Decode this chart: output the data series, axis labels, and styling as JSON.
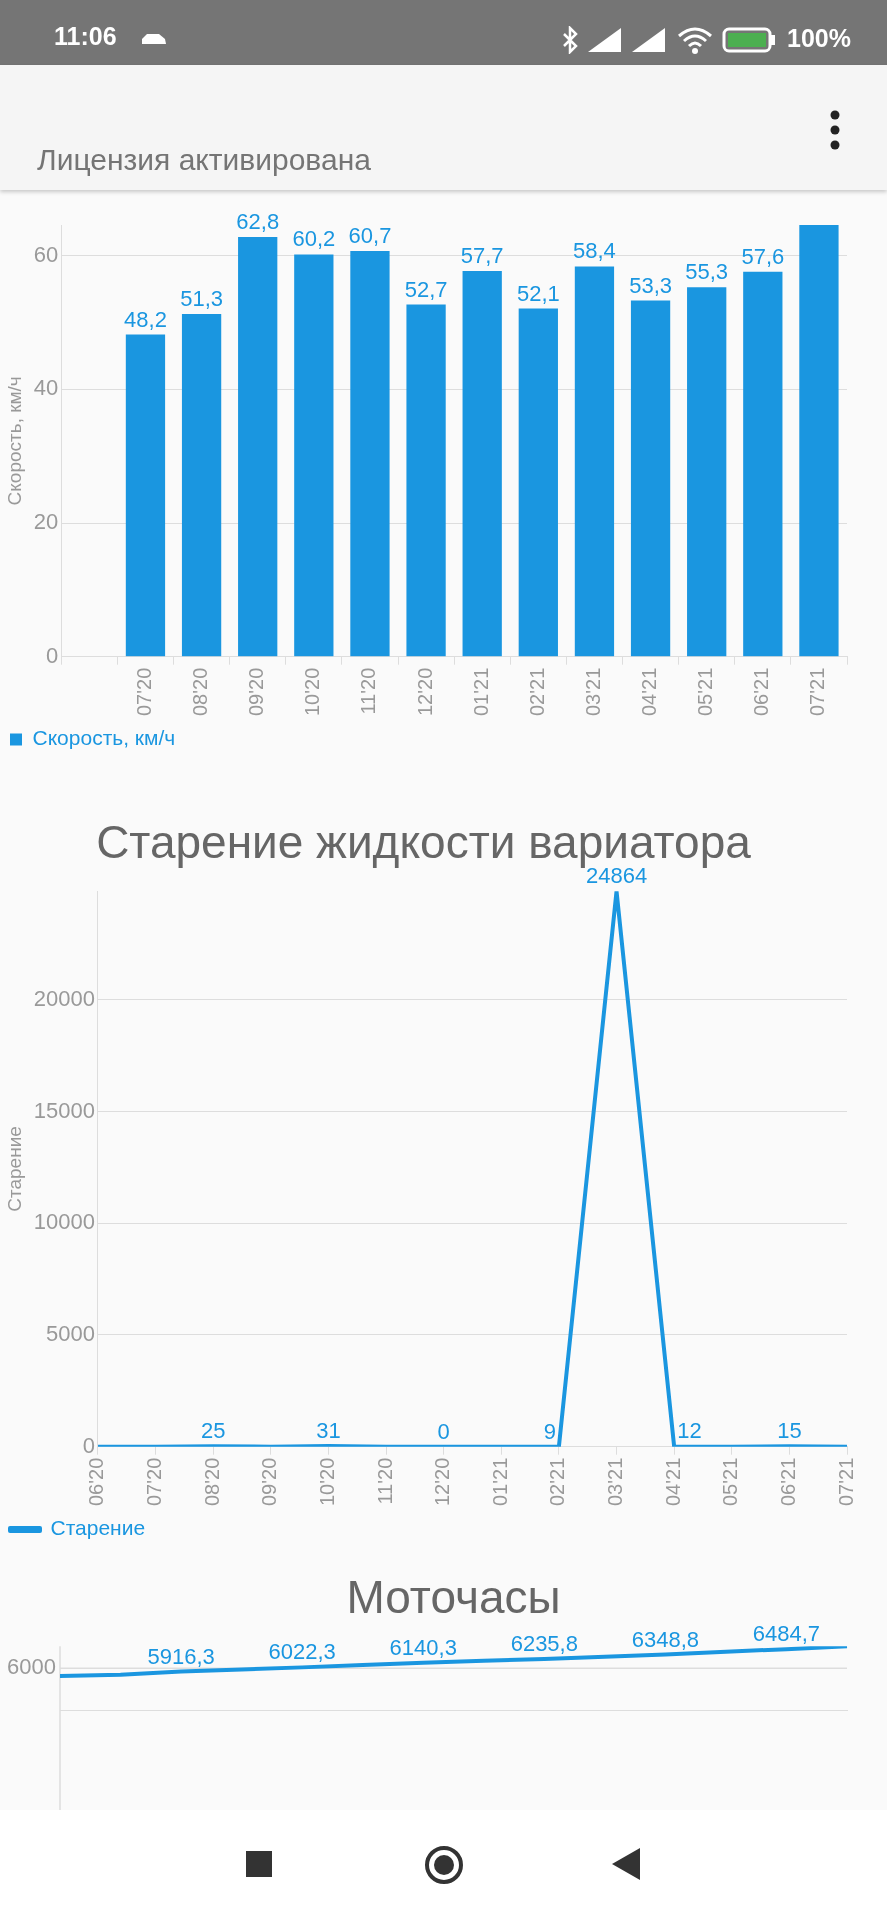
{
  "chart_data": [
    {
      "type": "bar",
      "ylabel": "Скорость, км/ч",
      "annotations": [
        "11:06",
        "100%",
        "Лицензия активирована"
      ],
      "categories": [
        null,
        "07'20",
        "08'20",
        "09'20",
        "10'20",
        "11'20",
        "12'20",
        "01'21",
        "02'21",
        "03'21",
        "04'21",
        "05'21",
        "06'21",
        "07'21"
      ],
      "series": [
        {
          "name": "Скорость, км/ч",
          "color": "#1a96e0",
          "values": [
            null,
            48.2,
            51.3,
            62.8,
            60.2,
            60.7,
            52.7,
            57.7,
            52.1,
            58.4,
            53.3,
            55.3,
            57.6,
            64.6
          ],
          "value_labels": [
            null,
            "48,2",
            "51,3",
            "62,8",
            "60,2",
            "60,7",
            "52,7",
            "57,7",
            "52,1",
            "58,4",
            "53,3",
            "55,3",
            "57,6",
            null
          ]
        }
      ],
      "ylim": [
        0,
        64.6
      ],
      "yticks": [
        0,
        20,
        40,
        60
      ],
      "grid": "y",
      "legend": "bottom left"
    },
    {
      "type": "line",
      "title": "Старение жидкости вариатора",
      "ylabel": "Старение",
      "categories": [
        "06'20",
        "07'20",
        "08'20",
        "09'20",
        "10'20",
        "11'20",
        "12'20",
        "01'21",
        "02'21",
        "03'21",
        "04'21",
        "05'21",
        "06'21",
        "07'21"
      ],
      "series": [
        {
          "name": "Старение",
          "color": "#1a96e0",
          "values": [
            0,
            0,
            25,
            0,
            31,
            0,
            0,
            0,
            9,
            24864,
            12,
            0,
            15,
            0
          ],
          "value_labels": [
            null,
            null,
            "25",
            null,
            "31",
            null,
            "0",
            null,
            "9",
            "24864",
            "12",
            null,
            "15",
            null
          ]
        }
      ],
      "ylim": [
        0,
        24864
      ],
      "yticks": [
        0,
        5000,
        10000,
        15000,
        20000
      ],
      "grid": "y",
      "legend": "bottom left",
      "marker": "none"
    },
    {
      "type": "line",
      "title": "Моточасы",
      "categories": [
        null,
        null,
        null,
        null,
        null,
        null,
        null,
        null,
        null,
        null,
        null,
        null,
        null,
        null
      ],
      "series": [
        {
          "color": "#1a96e0",
          "values": [
            5805,
            5834,
            5916.3,
            5970,
            6022.3,
            6080,
            6140.3,
            6190,
            6235.8,
            6290,
            6348.8,
            6420,
            6484.7,
            6558
          ],
          "value_labels": [
            null,
            null,
            "5916,3",
            null,
            "6022,3",
            null,
            "6140,3",
            null,
            "6235,8",
            null,
            "6348,8",
            null,
            "6484,7",
            null
          ]
        }
      ],
      "ylim": [
        4940,
        6560
      ],
      "ref_lines": [
        {
          "axis": "y",
          "value": 6000,
          "label": "6000"
        }
      ],
      "tick_labels": false,
      "marker": "none"
    }
  ]
}
